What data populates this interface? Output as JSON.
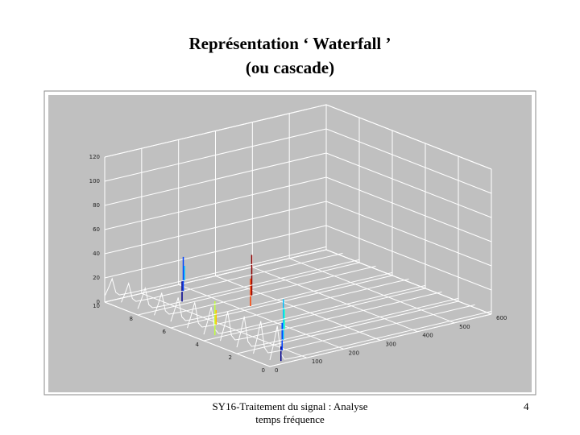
{
  "header": {
    "title_lines": [
      "Représentation ‘ Waterfall ’",
      "(ou cascade)"
    ]
  },
  "figure": {
    "z_ticks": [
      "120",
      "100",
      "80",
      "60",
      "40",
      "20",
      "0"
    ],
    "y_ticks": [
      "10",
      "8",
      "6",
      "4",
      "2",
      "0"
    ],
    "x_ticks": [
      "0",
      "100",
      "200",
      "300",
      "400",
      "500",
      "600"
    ]
  },
  "footer": {
    "lines": [
      "SY16-Traitement du signal : Analyse",
      "temps fréquence"
    ],
    "page": "4"
  }
}
